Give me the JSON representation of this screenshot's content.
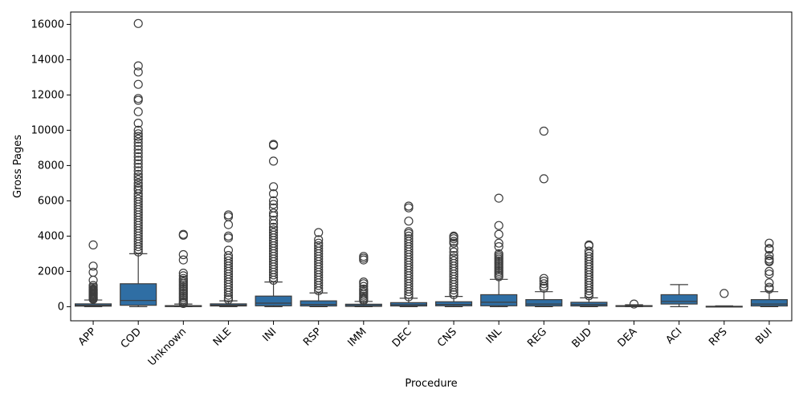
{
  "chart_data": {
    "type": "box",
    "title": "",
    "xlabel": "Procedure",
    "ylabel": "Gross Pages",
    "ylim": [
      -800,
      16700
    ],
    "yticks": [
      0,
      2000,
      4000,
      6000,
      8000,
      10000,
      12000,
      14000,
      16000
    ],
    "grid": false,
    "legend": "none",
    "colors": {
      "box": "#2f6ea4",
      "edge": "#3d3d3d",
      "outlier": "#3d3d3d",
      "median": "#3d3d3d"
    },
    "categories": [
      "APP",
      "COD",
      "Unknown",
      "NLE",
      "INI",
      "RSP",
      "IMM",
      "DEC",
      "CNS",
      "INL",
      "REG",
      "BUD",
      "DEA",
      "ACI",
      "RPS",
      "BUI"
    ],
    "boxes": [
      {
        "label": "APP",
        "min": 0,
        "q1": 30,
        "median": 80,
        "q3": 160,
        "max": 380,
        "outliers": [
          3500,
          2300,
          1950,
          1500,
          1200,
          1100,
          1000,
          950,
          900,
          850,
          800,
          750,
          700,
          650,
          600,
          550,
          500,
          450,
          420
        ]
      },
      {
        "label": "COD",
        "min": 0,
        "q1": 80,
        "median": 350,
        "q3": 1300,
        "max": 3000,
        "outliers": [
          16050,
          13650,
          13300,
          12600,
          11800,
          11700,
          11050,
          10400,
          10000,
          9800,
          9650,
          9500,
          9300,
          9100,
          8900,
          8700,
          8500,
          8300,
          8100,
          7900,
          7700,
          7500,
          7350,
          7200,
          7000,
          6850,
          6700,
          6600,
          6400,
          6250,
          6100,
          5950,
          5800,
          5650,
          5500,
          5350,
          5200,
          5050,
          4900,
          4750,
          4600,
          4450,
          4300,
          4150,
          4000,
          3850,
          3700,
          3550,
          3400,
          3250,
          3100
        ]
      },
      {
        "label": "Unknown",
        "min": 0,
        "q1": 5,
        "median": 20,
        "q3": 60,
        "max": 150,
        "outliers": [
          4100,
          4050,
          2950,
          2650,
          1900,
          1750,
          1600,
          1500,
          1400,
          1300,
          1200,
          1100,
          1000,
          900,
          800,
          700,
          600,
          500,
          400,
          300,
          220,
          180
        ]
      },
      {
        "label": "NLE",
        "min": 0,
        "q1": 40,
        "median": 90,
        "q3": 160,
        "max": 330,
        "outliers": [
          5200,
          5100,
          4650,
          4000,
          3900,
          3200,
          2900,
          2750,
          2600,
          2450,
          2300,
          2150,
          2000,
          1850,
          1700,
          1550,
          1400,
          1250,
          1100,
          950,
          800,
          650,
          500,
          400
        ]
      },
      {
        "label": "INI",
        "min": 0,
        "q1": 50,
        "median": 200,
        "q3": 600,
        "max": 1400,
        "outliers": [
          9200,
          9150,
          8250,
          6800,
          6400,
          6000,
          5800,
          5600,
          5300,
          5150,
          4900,
          4700,
          4500,
          4350,
          4200,
          4050,
          3900,
          3750,
          3600,
          3450,
          3300,
          3150,
          3000,
          2850,
          2700,
          2550,
          2400,
          2250,
          2100,
          1950,
          1800,
          1650,
          1500
        ]
      },
      {
        "label": "RSP",
        "min": 0,
        "q1": 40,
        "median": 130,
        "q3": 330,
        "max": 780,
        "outliers": [
          4200,
          3800,
          3600,
          3450,
          3300,
          3150,
          3000,
          2850,
          2700,
          2550,
          2400,
          2250,
          2100,
          1950,
          1800,
          1650,
          1500,
          1350,
          1200,
          1050,
          900
        ]
      },
      {
        "label": "IMM",
        "min": 0,
        "q1": 20,
        "median": 60,
        "q3": 140,
        "max": 300,
        "outliers": [
          2850,
          2750,
          2650,
          1400,
          1300,
          1150,
          1000,
          900,
          800,
          700,
          600,
          500,
          420,
          350
        ]
      },
      {
        "label": "DEC",
        "min": 0,
        "q1": 40,
        "median": 110,
        "q3": 230,
        "max": 480,
        "outliers": [
          5700,
          5600,
          4850,
          4250,
          4150,
          4000,
          3850,
          3700,
          3550,
          3400,
          3250,
          3100,
          2950,
          2800,
          2650,
          2500,
          2350,
          2200,
          2050,
          1900,
          1750,
          1600,
          1450,
          1300,
          1150,
          1000,
          850,
          700,
          560
        ]
      },
      {
        "label": "CNS",
        "min": 0,
        "q1": 50,
        "median": 130,
        "q3": 280,
        "max": 580,
        "outliers": [
          4000,
          3950,
          3850,
          3700,
          3600,
          3300,
          3100,
          2900,
          2750,
          2600,
          2450,
          2300,
          2150,
          2000,
          1850,
          1700,
          1550,
          1400,
          1250,
          1100,
          950,
          800,
          680
        ]
      },
      {
        "label": "INL",
        "min": 0,
        "q1": 50,
        "median": 250,
        "q3": 680,
        "max": 1550,
        "outliers": [
          6150,
          4600,
          4100,
          3600,
          3400,
          3000,
          2900,
          2800,
          2700,
          2600,
          2500,
          2400,
          2300,
          2200,
          2100,
          2000,
          1900,
          1800,
          1700
        ]
      },
      {
        "label": "REG",
        "min": 0,
        "q1": 40,
        "median": 150,
        "q3": 400,
        "max": 850,
        "outliers": [
          9950,
          7250,
          1600,
          1450,
          1300,
          1150,
          1050
        ]
      },
      {
        "label": "BUD",
        "min": 0,
        "q1": 40,
        "median": 120,
        "q3": 250,
        "max": 500,
        "outliers": [
          3500,
          3450,
          3150,
          3000,
          2850,
          2700,
          2550,
          2400,
          2250,
          2100,
          1950,
          1800,
          1650,
          1500,
          1350,
          1200,
          1050,
          900,
          750,
          620
        ]
      },
      {
        "label": "DEA",
        "min": 0,
        "q1": 10,
        "median": 30,
        "q3": 60,
        "max": 110,
        "outliers": [
          150
        ]
      },
      {
        "label": "ACI",
        "min": 0,
        "q1": 150,
        "median": 300,
        "q3": 680,
        "max": 1250,
        "outliers": []
      },
      {
        "label": "RPS",
        "min": 0,
        "q1": 2,
        "median": 10,
        "q3": 25,
        "max": 50,
        "outliers": [
          750
        ]
      },
      {
        "label": "BUI",
        "min": 0,
        "q1": 40,
        "median": 150,
        "q3": 400,
        "max": 850,
        "outliers": [
          3600,
          3300,
          3250,
          2900,
          2700,
          2600,
          2550,
          2000,
          1850,
          1350,
          1100,
          1000
        ]
      }
    ]
  }
}
